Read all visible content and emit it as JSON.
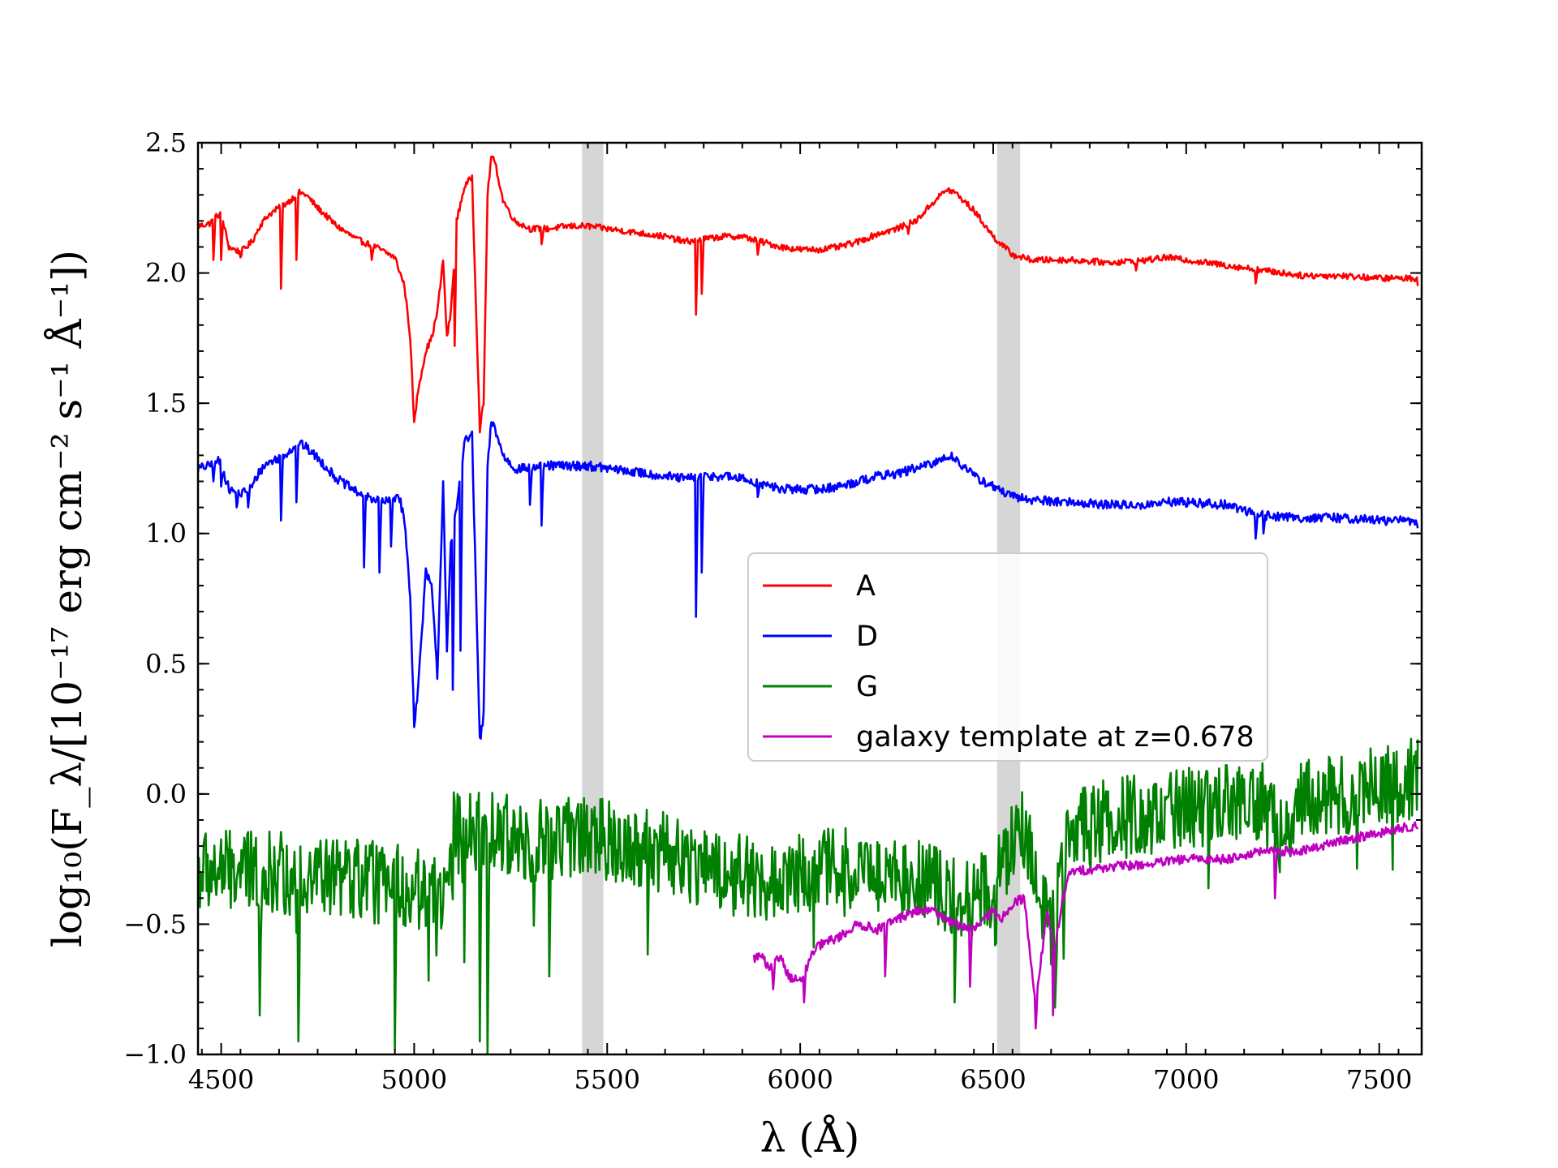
{
  "chart_data": {
    "type": "line",
    "xlabel": "λ (Å)",
    "ylabel": "log₁₀(F_λ/[10⁻¹⁷ erg cm⁻² s⁻¹ Å⁻¹])",
    "xlim": [
      4440,
      7610
    ],
    "ylim": [
      -1.0,
      2.5
    ],
    "x_ticks": [
      4500,
      5000,
      5500,
      6000,
      6500,
      7000,
      7500
    ],
    "x_tick_labels": [
      "4500",
      "5000",
      "5500",
      "6000",
      "6500",
      "7000",
      "7500"
    ],
    "y_ticks": [
      -1.0,
      -0.5,
      0.0,
      0.5,
      1.0,
      1.5,
      2.0,
      2.5
    ],
    "y_tick_labels": [
      "−1.0",
      "−0.5",
      "0.0",
      "0.5",
      "1.0",
      "1.5",
      "2.0",
      "2.5"
    ],
    "grid": false,
    "legend_position": "center-right",
    "shaded_regions": [
      {
        "x0": 5435,
        "x1": 5490,
        "color": "#c8c8c8"
      },
      {
        "x0": 6510,
        "x1": 6570,
        "color": "#c8c8c8"
      }
    ],
    "series": [
      {
        "name": "A",
        "color": "#ff0000",
        "noise": 0.012,
        "x": [
          4440,
          4470,
          4490,
          4500,
          4520,
          4550,
          4580,
          4600,
          4620,
          4650,
          4680,
          4700,
          4720,
          4750,
          4800,
          4850,
          4900,
          4950,
          4975,
          4990,
          5000,
          5010,
          5030,
          5045,
          5060,
          5075,
          5085,
          5095,
          5110,
          5130,
          5150,
          5170,
          5180,
          5190,
          5200,
          5210,
          5230,
          5260,
          5300,
          5350,
          5400,
          5450,
          5500,
          5550,
          5600,
          5650,
          5700,
          5750,
          5800,
          5850,
          5900,
          5950,
          6000,
          6050,
          6100,
          6150,
          6200,
          6250,
          6300,
          6350,
          6380,
          6400,
          6450,
          6500,
          6550,
          6600,
          6700,
          6800,
          6900,
          6950,
          7000,
          7100,
          7200,
          7300,
          7400,
          7500,
          7600
        ],
        "y": [
          2.18,
          2.19,
          2.22,
          2.23,
          2.1,
          2.08,
          2.12,
          2.18,
          2.22,
          2.25,
          2.28,
          2.31,
          2.3,
          2.25,
          2.18,
          2.13,
          2.1,
          2.06,
          1.95,
          1.75,
          1.42,
          1.55,
          1.7,
          1.75,
          1.85,
          2.05,
          1.75,
          1.85,
          2.2,
          2.33,
          2.37,
          1.4,
          1.5,
          2.3,
          2.45,
          2.42,
          2.28,
          2.2,
          2.17,
          2.17,
          2.18,
          2.18,
          2.17,
          2.16,
          2.15,
          2.14,
          2.12,
          2.13,
          2.14,
          2.14,
          2.12,
          2.1,
          2.09,
          2.09,
          2.1,
          2.12,
          2.15,
          2.17,
          2.2,
          2.28,
          2.32,
          2.31,
          2.24,
          2.14,
          2.07,
          2.05,
          2.05,
          2.04,
          2.05,
          2.06,
          2.05,
          2.03,
          2.01,
          1.99,
          1.99,
          1.98,
          1.98
        ],
        "dips": [
          [
            4480,
            2.05
          ],
          [
            4500,
            2.05
          ],
          [
            4550,
            2.06
          ],
          [
            4655,
            1.94
          ],
          [
            4695,
            2.05
          ],
          [
            4890,
            2.05
          ],
          [
            5105,
            1.72
          ],
          [
            5330,
            2.11
          ],
          [
            5730,
            1.84
          ],
          [
            5745,
            1.92
          ],
          [
            5890,
            2.07
          ],
          [
            6280,
            2.15
          ],
          [
            6870,
            2.01
          ],
          [
            7180,
            1.96
          ],
          [
            7600,
            1.95
          ]
        ]
      },
      {
        "name": "D",
        "color": "#0000ff",
        "noise": 0.018,
        "x": [
          4440,
          4470,
          4490,
          4500,
          4520,
          4550,
          4580,
          4600,
          4620,
          4650,
          4680,
          4700,
          4720,
          4750,
          4800,
          4850,
          4900,
          4930,
          4960,
          4975,
          4990,
          5000,
          5010,
          5030,
          5045,
          5060,
          5075,
          5085,
          5095,
          5110,
          5130,
          5150,
          5170,
          5180,
          5190,
          5200,
          5210,
          5230,
          5260,
          5300,
          5350,
          5400,
          5450,
          5500,
          5550,
          5600,
          5650,
          5700,
          5750,
          5800,
          5850,
          5900,
          5950,
          6000,
          6050,
          6100,
          6150,
          6200,
          6250,
          6300,
          6350,
          6380,
          6400,
          6450,
          6500,
          6550,
          6600,
          6700,
          6800,
          6900,
          6950,
          7000,
          7100,
          7200,
          7300,
          7400,
          7500,
          7600
        ],
        "y": [
          1.25,
          1.26,
          1.28,
          1.27,
          1.17,
          1.15,
          1.18,
          1.24,
          1.27,
          1.29,
          1.32,
          1.35,
          1.33,
          1.29,
          1.21,
          1.16,
          1.13,
          1.12,
          1.15,
          1.05,
          0.75,
          0.27,
          0.4,
          0.85,
          0.8,
          0.45,
          1.2,
          0.55,
          0.95,
          1.1,
          1.35,
          1.38,
          0.2,
          0.3,
          1.25,
          1.43,
          1.4,
          1.3,
          1.25,
          1.25,
          1.26,
          1.26,
          1.26,
          1.25,
          1.24,
          1.23,
          1.22,
          1.21,
          1.22,
          1.22,
          1.21,
          1.19,
          1.17,
          1.17,
          1.17,
          1.18,
          1.2,
          1.22,
          1.23,
          1.25,
          1.27,
          1.3,
          1.29,
          1.22,
          1.18,
          1.14,
          1.13,
          1.12,
          1.11,
          1.11,
          1.12,
          1.12,
          1.11,
          1.07,
          1.06,
          1.06,
          1.05,
          1.05
        ],
        "dips": [
          [
            4480,
            1.2
          ],
          [
            4500,
            1.18
          ],
          [
            4540,
            1.1
          ],
          [
            4570,
            1.1
          ],
          [
            4655,
            1.05
          ],
          [
            4695,
            1.12
          ],
          [
            4870,
            0.87
          ],
          [
            4910,
            0.85
          ],
          [
            4940,
            0.95
          ],
          [
            5100,
            0.4
          ],
          [
            5120,
            0.55
          ],
          [
            5300,
            1.11
          ],
          [
            5330,
            1.03
          ],
          [
            5730,
            0.68
          ],
          [
            5745,
            0.85
          ],
          [
            5890,
            1.14
          ],
          [
            6870,
            1.1
          ],
          [
            7180,
            0.98
          ],
          [
            7200,
            1.0
          ],
          [
            7600,
            1.02
          ]
        ]
      },
      {
        "name": "G",
        "color": "#008000",
        "noise": 0.16,
        "x": [
          4440,
          4600,
          4800,
          5000,
          5090,
          5100,
          5200,
          5300,
          5400,
          5435,
          5490,
          5600,
          5700,
          5800,
          5900,
          6000,
          6100,
          6200,
          6300,
          6400,
          6450,
          6500,
          6510,
          6570,
          6600,
          6650,
          6670,
          6700,
          6800,
          6900,
          7000,
          7100,
          7200,
          7240,
          7300,
          7400,
          7500,
          7600
        ],
        "y": [
          -0.3,
          -0.3,
          -0.32,
          -0.36,
          -0.38,
          -0.15,
          -0.15,
          -0.18,
          -0.17,
          -0.14,
          -0.18,
          -0.2,
          -0.25,
          -0.3,
          -0.33,
          -0.3,
          -0.28,
          -0.3,
          -0.32,
          -0.38,
          -0.4,
          -0.35,
          -0.32,
          -0.13,
          -0.25,
          -0.55,
          -0.4,
          -0.12,
          -0.1,
          -0.08,
          -0.06,
          -0.04,
          -0.04,
          -0.15,
          -0.02,
          0.0,
          0.03,
          0.06
        ],
        "dips": [
          [
            4600,
            -0.85
          ],
          [
            4700,
            -0.95
          ],
          [
            4950,
            -0.98
          ],
          [
            5170,
            -0.95
          ],
          [
            5190,
            -1.0
          ],
          [
            5350,
            -0.7
          ],
          [
            6400,
            -0.8
          ],
          [
            6660,
            -0.82
          ],
          [
            7230,
            -0.22
          ]
        ]
      },
      {
        "name": "galaxy template at z=0.678",
        "color": "#c000c0",
        "noise": 0.018,
        "x": [
          5880,
          5900,
          5920,
          5950,
          5970,
          6000,
          6030,
          6050,
          6100,
          6150,
          6200,
          6250,
          6300,
          6350,
          6400,
          6450,
          6500,
          6520,
          6550,
          6580,
          6610,
          6640,
          6660,
          6680,
          6700,
          6800,
          6900,
          7000,
          7100,
          7200,
          7300,
          7400,
          7500,
          7600
        ],
        "y": [
          -0.63,
          -0.62,
          -0.68,
          -0.62,
          -0.7,
          -0.72,
          -0.62,
          -0.58,
          -0.55,
          -0.5,
          -0.52,
          -0.48,
          -0.45,
          -0.45,
          -0.5,
          -0.52,
          -0.45,
          -0.48,
          -0.42,
          -0.4,
          -0.8,
          -0.45,
          -0.6,
          -0.4,
          -0.3,
          -0.28,
          -0.27,
          -0.25,
          -0.25,
          -0.22,
          -0.22,
          -0.18,
          -0.15,
          -0.12
        ],
        "dips": [
          [
            5930,
            -0.75
          ],
          [
            6010,
            -0.8
          ],
          [
            6220,
            -0.7
          ],
          [
            6440,
            -0.74
          ],
          [
            6610,
            -0.9
          ],
          [
            6655,
            -0.85
          ],
          [
            7230,
            -0.4
          ]
        ]
      }
    ]
  }
}
